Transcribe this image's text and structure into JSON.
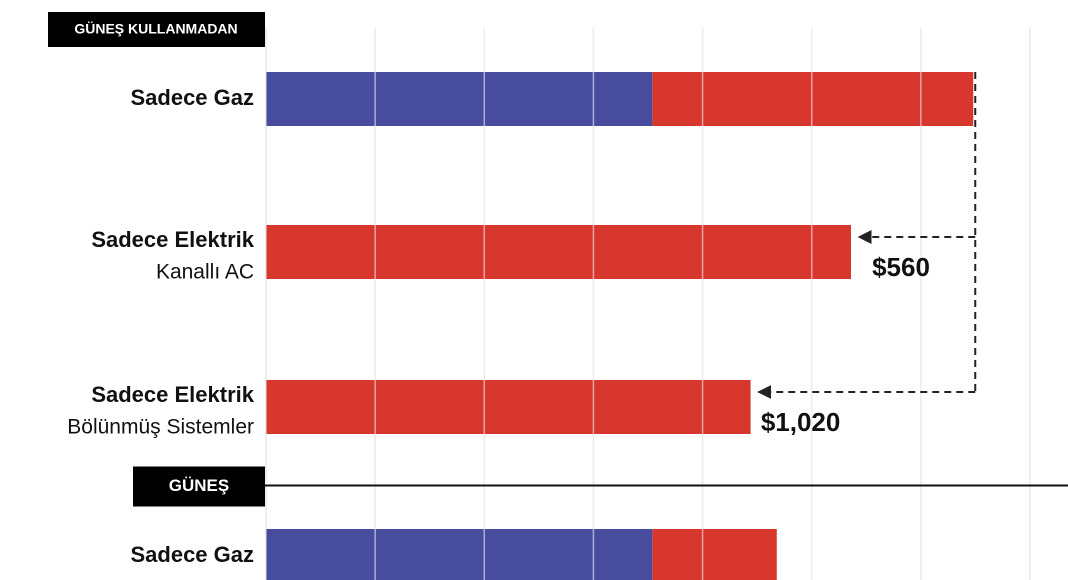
{
  "chart_data": {
    "type": "stacked-bar-horizontal",
    "sections": [
      {
        "label": "GÜNEŞ KULLANMADAN",
        "first_category": 0
      },
      {
        "label": "GÜNEŞ",
        "first_category": 3
      }
    ],
    "categories": [
      "Sadece Gaz",
      "Sadece Elektrik",
      "Sadece Elektrik",
      "Sadece Gaz"
    ],
    "category_sublabels": [
      null,
      "Kanallı AC",
      "Bölünmüş Sistemler",
      null
    ],
    "series": [
      {
        "color": "#474c9e",
        "values": [
          1770,
          0,
          0,
          1770
        ]
      },
      {
        "color": "#d8372e",
        "values": [
          1470,
          2680,
          2220,
          570
        ]
      }
    ],
    "difference_labels": [
      null,
      {
        "value": 560,
        "label": "$560"
      },
      {
        "value": 1020,
        "label": "$1,020"
      },
      null
    ],
    "xlim": [
      0,
      3500
    ],
    "xticks": [
      0,
      500,
      1000,
      1500,
      2000,
      2500,
      3000,
      3500
    ],
    "grid": true
  }
}
